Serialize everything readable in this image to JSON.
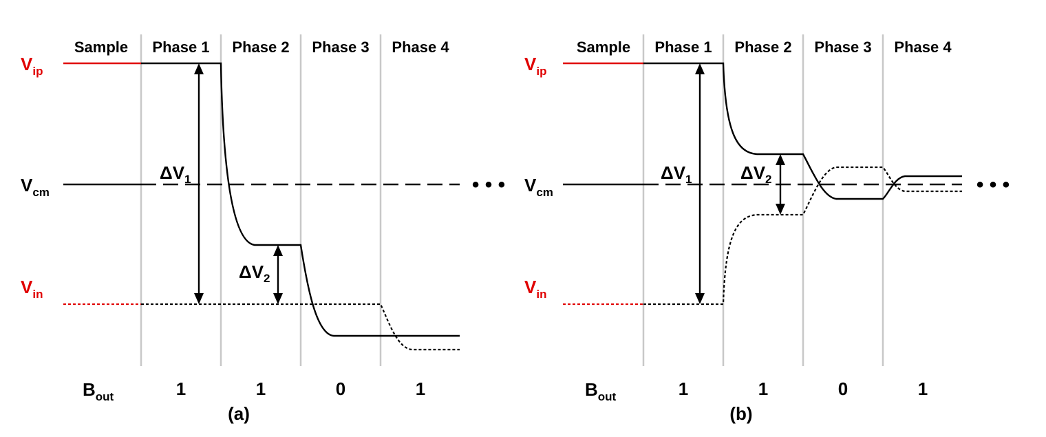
{
  "panels": [
    {
      "caption": "(a)",
      "phases": [
        "Sample",
        "Phase 1",
        "Phase 2",
        "Phase 3",
        "Phase 4"
      ],
      "levels": {
        "vip": "V",
        "vip_sub": "ip",
        "vcm": "V",
        "vcm_sub": "cm",
        "vin": "V",
        "vin_sub": "in"
      },
      "annotations": [
        {
          "main": "ΔV",
          "sub": "1"
        },
        {
          "main": "ΔV",
          "sub": "2"
        }
      ],
      "bout_label": {
        "main": "B",
        "sub": "out"
      },
      "bits": [
        "1",
        "1",
        "0",
        "1"
      ],
      "ellipsis": "• • •"
    },
    {
      "caption": "(b)",
      "phases": [
        "Sample",
        "Phase 1",
        "Phase 2",
        "Phase 3",
        "Phase 4"
      ],
      "levels": {
        "vip": "V",
        "vip_sub": "ip",
        "vcm": "V",
        "vcm_sub": "cm",
        "vin": "V",
        "vin_sub": "in"
      },
      "annotations": [
        {
          "main": "ΔV",
          "sub": "1"
        },
        {
          "main": "ΔV",
          "sub": "2"
        }
      ],
      "bout_label": {
        "main": "B",
        "sub": "out"
      },
      "bits": [
        "1",
        "1",
        "0",
        "1"
      ],
      "ellipsis": "• • •"
    }
  ],
  "colors": {
    "accent": "#e00000",
    "divider": "#c8c8c8",
    "trace": "#000000"
  }
}
